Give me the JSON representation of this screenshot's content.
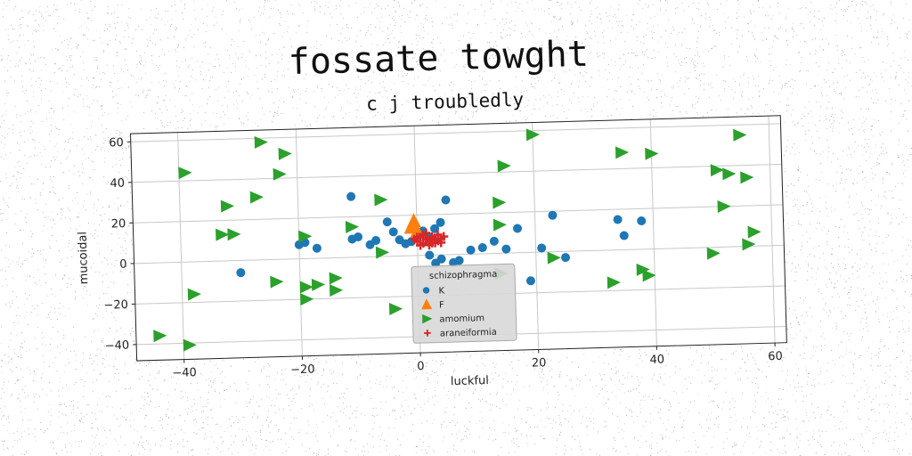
{
  "chart_data": {
    "type": "scatter",
    "title": "fossate towght",
    "subtitle": "c j troubledly",
    "xlabel": "luckful",
    "ylabel": "mucoidal",
    "xlim": [
      -48,
      62
    ],
    "ylim": [
      -48,
      64
    ],
    "xticks": [
      -40,
      -20,
      0,
      20,
      40,
      60
    ],
    "yticks": [
      -40,
      -20,
      0,
      20,
      40,
      60
    ],
    "xtick_labels": [
      "−40",
      "−20",
      "0",
      "20",
      "40",
      "60"
    ],
    "ytick_labels": [
      "−40",
      "−20",
      "0",
      "20",
      "40",
      "60"
    ],
    "grid": true,
    "legend": {
      "title": "schizophragma",
      "placement": "lower-center"
    },
    "series": [
      {
        "name": "K",
        "color": "#1f77b4",
        "marker": "circle",
        "points": [
          [
            -30,
            -6
          ],
          [
            -20,
            7
          ],
          [
            -19,
            8
          ],
          [
            -17,
            5
          ],
          [
            -11,
            30
          ],
          [
            -11,
            9
          ],
          [
            -10,
            10
          ],
          [
            -8,
            6
          ],
          [
            -7,
            8
          ],
          [
            -5,
            17
          ],
          [
            -4,
            12
          ],
          [
            -3,
            8
          ],
          [
            -2,
            6
          ],
          [
            -1,
            7
          ],
          [
            0,
            10
          ],
          [
            1,
            12
          ],
          [
            2,
            9
          ],
          [
            3,
            13
          ],
          [
            4,
            16
          ],
          [
            5,
            27
          ],
          [
            2,
            0
          ],
          [
            3,
            -4
          ],
          [
            4,
            -2
          ],
          [
            6,
            -4
          ],
          [
            7,
            -3
          ],
          [
            9,
            2
          ],
          [
            11,
            3
          ],
          [
            13,
            6
          ],
          [
            15,
            2
          ],
          [
            17,
            12
          ],
          [
            19,
            -14
          ],
          [
            21,
            2
          ],
          [
            23,
            18
          ],
          [
            25,
            -3
          ],
          [
            34,
            15
          ],
          [
            35,
            7
          ],
          [
            38,
            14
          ]
        ]
      },
      {
        "name": "F",
        "color": "#ff7f0e",
        "marker": "triangle",
        "points": [
          [
            -1,
            14
          ],
          [
            -0.5,
            17
          ],
          [
            0,
            12
          ]
        ]
      },
      {
        "name": "amomium",
        "color": "#2ca02c",
        "marker": "triangle-right",
        "points": [
          [
            -44,
            -36
          ],
          [
            -39,
            -41
          ],
          [
            -39,
            44
          ],
          [
            -38,
            -16
          ],
          [
            -33,
            13
          ],
          [
            -32,
            27
          ],
          [
            -31,
            13
          ],
          [
            -27,
            31
          ],
          [
            -26,
            58
          ],
          [
            -24,
            -11
          ],
          [
            -23,
            42
          ],
          [
            -22,
            52
          ],
          [
            -19,
            -20
          ],
          [
            -19,
            -14
          ],
          [
            -19,
            11
          ],
          [
            -17,
            -13
          ],
          [
            -14,
            -10
          ],
          [
            -14,
            -16
          ],
          [
            -11,
            15
          ],
          [
            -6,
            2
          ],
          [
            -4,
            -26
          ],
          [
            -6,
            28
          ],
          [
            14,
            14
          ],
          [
            14,
            -10
          ],
          [
            14,
            25
          ],
          [
            15,
            43
          ],
          [
            20,
            58
          ],
          [
            23,
            -3
          ],
          [
            33,
            -16
          ],
          [
            35,
            48
          ],
          [
            38,
            -10
          ],
          [
            39,
            -13
          ],
          [
            40,
            47
          ],
          [
            50,
            -3
          ],
          [
            51,
            38
          ],
          [
            52,
            20
          ],
          [
            53,
            36
          ],
          [
            55,
            55
          ],
          [
            56,
            1
          ],
          [
            56,
            34
          ],
          [
            57,
            7
          ]
        ]
      },
      {
        "name": "araneiformia",
        "color": "#d62728",
        "marker": "plus",
        "points": [
          [
            0,
            7
          ],
          [
            0.5,
            9
          ],
          [
            1,
            6
          ],
          [
            1.5,
            8
          ],
          [
            2,
            7
          ],
          [
            2.5,
            9
          ],
          [
            3,
            8
          ],
          [
            3.5,
            7
          ],
          [
            4,
            8
          ],
          [
            1,
            10
          ],
          [
            2,
            5
          ],
          [
            3,
            6
          ],
          [
            -0.5,
            8
          ],
          [
            4.5,
            9
          ],
          [
            0.5,
            5
          ],
          [
            3.5,
            10
          ],
          [
            2.5,
            6
          ],
          [
            1.5,
            11
          ],
          [
            0,
            9
          ],
          [
            4,
            6
          ]
        ]
      }
    ]
  }
}
